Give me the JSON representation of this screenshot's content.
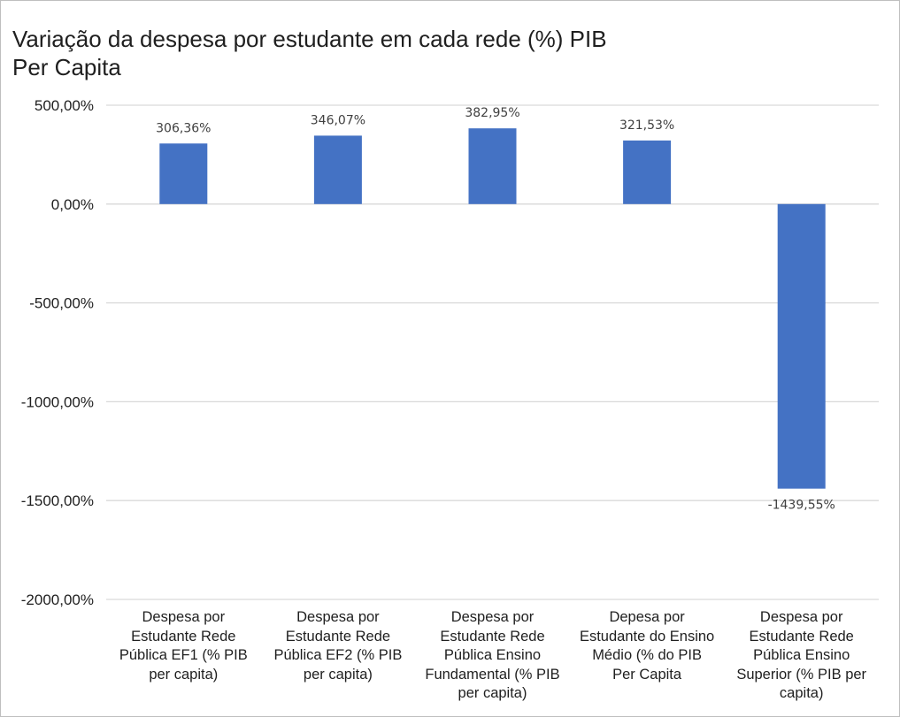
{
  "chart_data": {
    "type": "bar",
    "title_lines": [
      "Variação da despesa por estudante em cada rede (%) PIB",
      "Per Capita"
    ],
    "categories": [
      "Despesa por Estudante Rede Pública EF1 (% PIB per capita)",
      "Despesa por Estudante Rede Pública EF2 (% PIB per capita)",
      "Despesa por Estudante Rede Pública Ensino Fundamental (% PIB per capita)",
      "Depesa por Estudante do Ensino Médio (% do PIB Per Capita",
      "Despesa por Estudante Rede Pública Ensino Superior (% PIB per capita)"
    ],
    "category_lines": [
      [
        "Despesa por",
        "Estudante Rede",
        "Pública EF1 (% PIB",
        "per capita)"
      ],
      [
        "Despesa por",
        "Estudante Rede",
        "Pública EF2 (% PIB",
        "per capita)"
      ],
      [
        "Despesa por",
        "Estudante Rede",
        "Pública Ensino",
        "Fundamental (% PIB",
        "per capita)"
      ],
      [
        "Depesa por",
        "Estudante do Ensino",
        "Médio (% do PIB",
        "Per Capita"
      ],
      [
        "Despesa por",
        "Estudante Rede",
        "Pública Ensino",
        "Superior (% PIB per",
        "capita)"
      ]
    ],
    "values": [
      306.36,
      346.07,
      382.95,
      321.53,
      -1439.55
    ],
    "data_labels": [
      "306,36%",
      "346,07%",
      "382,95%",
      "321,53%",
      "-1439,55%"
    ],
    "ylim": [
      -2000,
      500
    ],
    "yticks": [
      500,
      0,
      -500,
      -1000,
      -1500,
      -2000
    ],
    "ytick_labels": [
      "500,00%",
      "0,00%",
      "-500,00%",
      "-1000,00%",
      "-1500,00%",
      "-2000,00%"
    ],
    "grid": true,
    "legend": "none",
    "bar_color": "#4472C4",
    "grid_color": "#d9d9d9"
  }
}
